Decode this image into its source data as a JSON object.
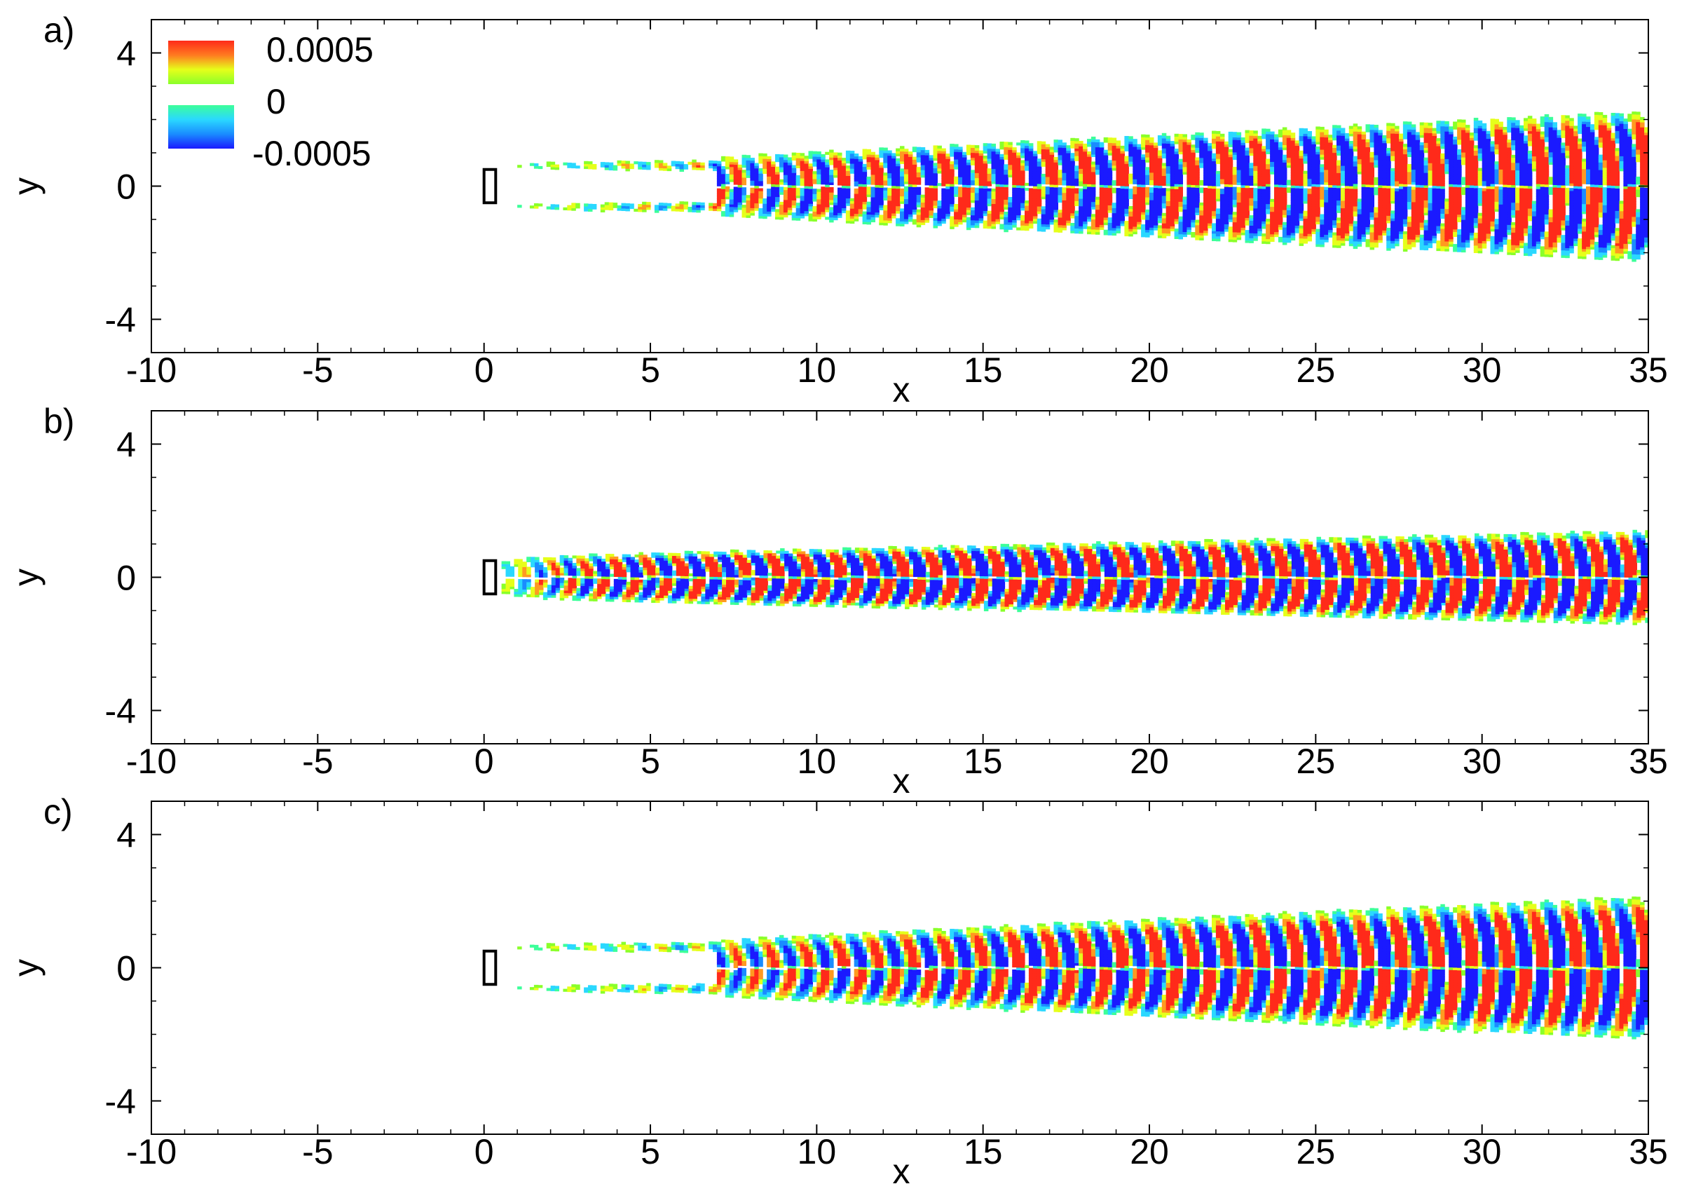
{
  "figure": {
    "background": "#ffffff"
  },
  "legend": {
    "entries": [
      {
        "label": "0.0005",
        "gradient": [
          "#ff2a1a",
          "#ff7a20",
          "#e6ff1a",
          "#8aff2a"
        ]
      },
      {
        "label": "0",
        "gradient": [
          "#3cff9a",
          "#2ad8ff",
          "#1a8cff",
          "#1a1aff"
        ]
      },
      {
        "label": "-0.0005"
      }
    ]
  },
  "colormap": [
    "#1a1aff",
    "#1a8cff",
    "#2ad8ff",
    "#3cff9a",
    "#8aff2a",
    "#e6ff1a",
    "#ff9a20",
    "#ff2a1a"
  ],
  "chart_data": [
    {
      "type": "heatmap",
      "panel_label": "a)",
      "xlabel": "x",
      "ylabel": "y",
      "xlim": [
        -10,
        35
      ],
      "ylim": [
        -5,
        5
      ],
      "xticks": [
        -10,
        -5,
        0,
        5,
        10,
        15,
        20,
        25,
        30,
        35
      ],
      "yticks": [
        4,
        0,
        -4
      ],
      "levels": [
        -0.0005,
        0,
        0.0005
      ],
      "body": {
        "x": [
          0,
          0.35
        ],
        "y": [
          -0.5,
          0.5
        ]
      },
      "wake": {
        "onset_x": 1,
        "half_width_start": 0.6,
        "half_width_end": 2.1,
        "wavelength": 1.05,
        "amplitude_growth_x": 10
      }
    },
    {
      "type": "heatmap",
      "panel_label": "b)",
      "xlabel": "x",
      "ylabel": "y",
      "xlim": [
        -10,
        35
      ],
      "ylim": [
        -5,
        5
      ],
      "xticks": [
        -10,
        -5,
        0,
        5,
        10,
        15,
        20,
        25,
        30,
        35
      ],
      "yticks": [
        4,
        0,
        -4
      ],
      "levels": [
        -0.0005,
        0,
        0.0005
      ],
      "body": {
        "x": [
          0,
          0.35
        ],
        "y": [
          -0.5,
          0.5
        ]
      },
      "wake": {
        "onset_x": 0.4,
        "half_width_start": 0.6,
        "half_width_end": 1.3,
        "wavelength": 0.95,
        "amplitude_growth_x": 3
      }
    },
    {
      "type": "heatmap",
      "panel_label": "c)",
      "xlabel": "x",
      "ylabel": "y",
      "xlim": [
        -10,
        35
      ],
      "ylim": [
        -5,
        5
      ],
      "xticks": [
        -10,
        -5,
        0,
        5,
        10,
        15,
        20,
        25,
        30,
        35
      ],
      "yticks": [
        4,
        0,
        -4
      ],
      "levels": [
        -0.0005,
        0,
        0.0005
      ],
      "body": {
        "x": [
          0,
          0.35
        ],
        "y": [
          -0.5,
          0.5
        ]
      },
      "wake": {
        "onset_x": 1,
        "half_width_start": 0.6,
        "half_width_end": 2.0,
        "wavelength": 1.05,
        "amplitude_growth_x": 12
      }
    }
  ]
}
